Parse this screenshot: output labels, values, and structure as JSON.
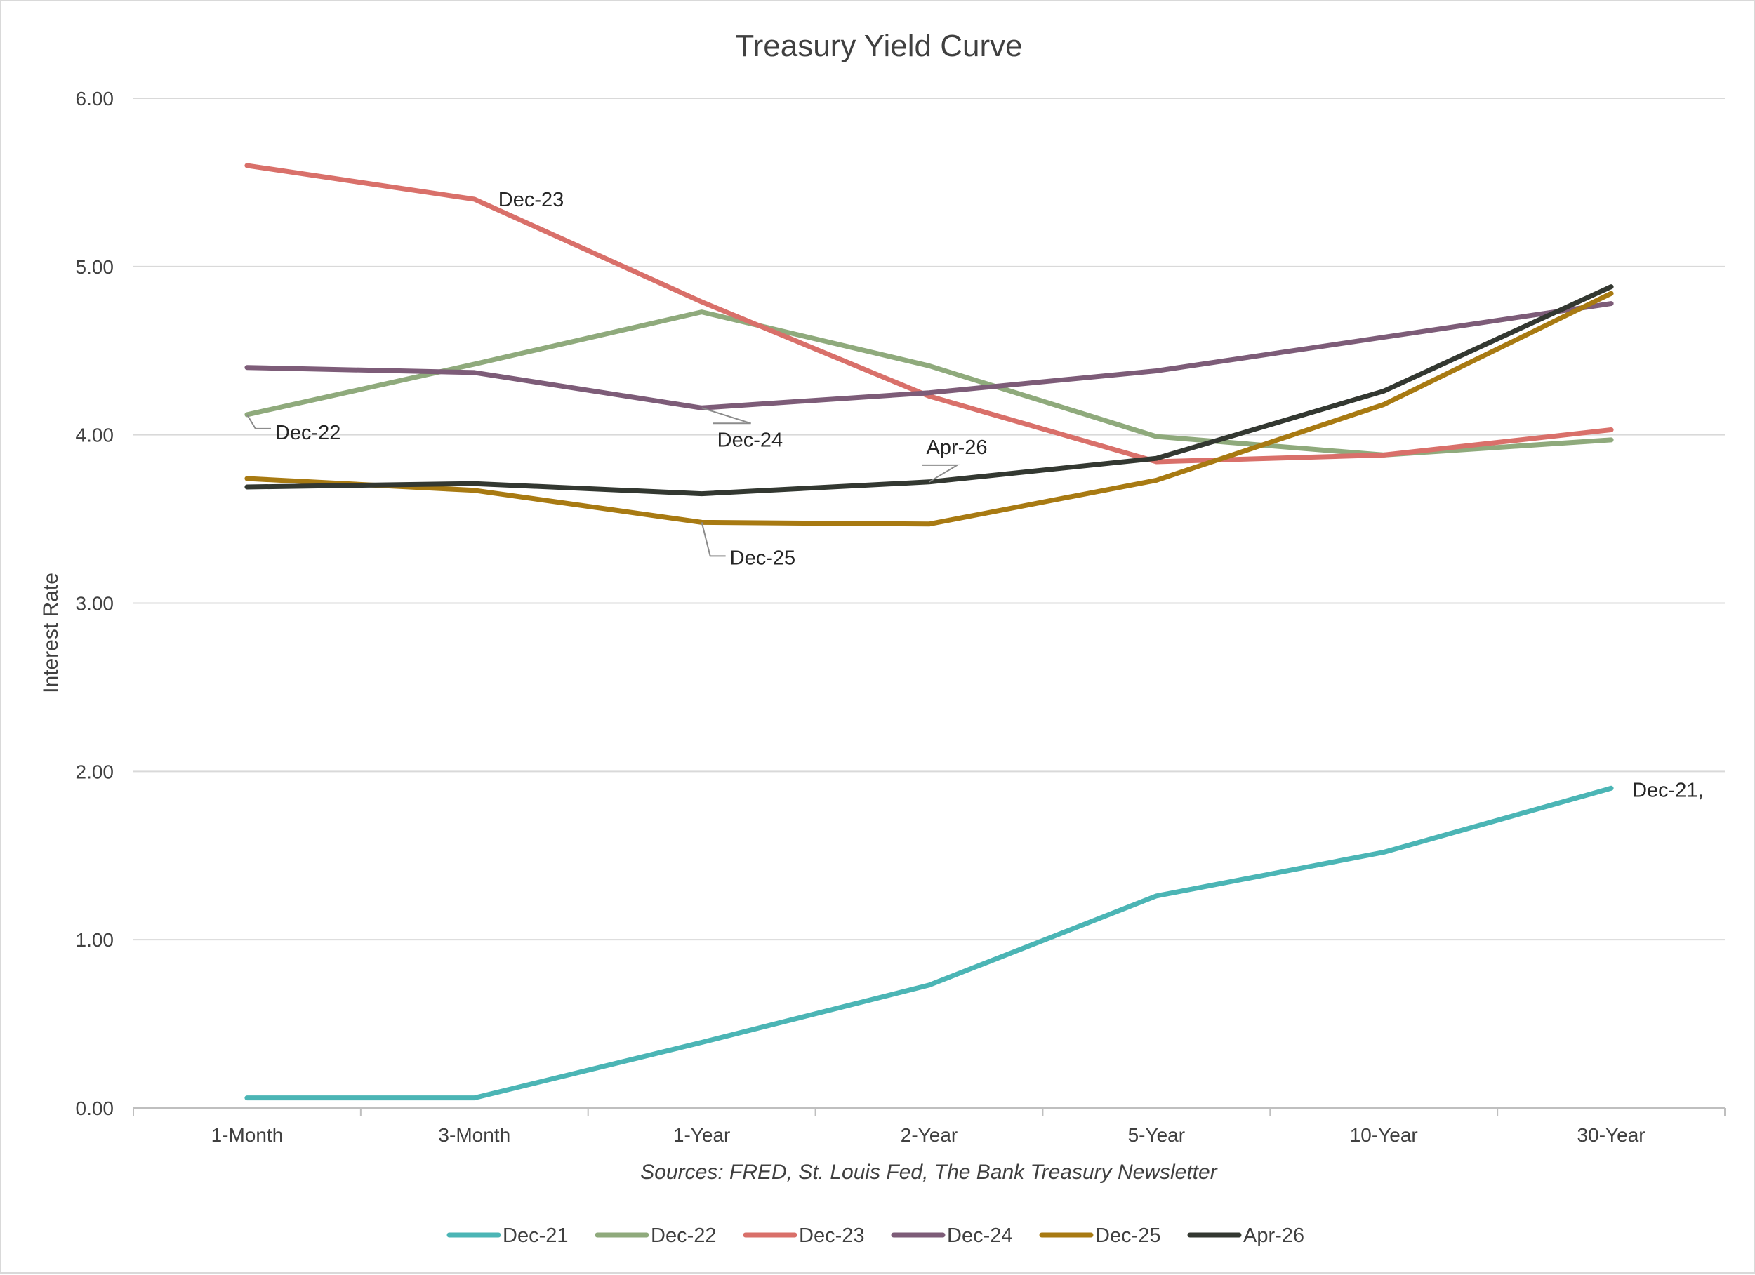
{
  "chart_data": {
    "type": "line",
    "title": "Treasury Yield Curve",
    "xlabel": "",
    "ylabel": "Interest Rate",
    "source_note": "Sources: FRED, St. Louis Fed, The Bank Treasury Newsletter",
    "categories": [
      "1-Month",
      "3-Month",
      "1-Year",
      "2-Year",
      "5-Year",
      "10-Year",
      "30-Year"
    ],
    "ylim": [
      0,
      6
    ],
    "yticks": [
      "0.00",
      "1.00",
      "2.00",
      "3.00",
      "4.00",
      "5.00",
      "6.00"
    ],
    "grid": true,
    "legend_position": "bottom",
    "series": [
      {
        "name": "Dec-21",
        "color": "#4bb5b5",
        "values": [
          0.06,
          0.06,
          0.39,
          0.73,
          1.26,
          1.52,
          1.9
        ],
        "annotation": {
          "text": "Dec-21,",
          "point": 6
        }
      },
      {
        "name": "Dec-22",
        "color": "#8faa7c",
        "values": [
          4.12,
          4.42,
          4.73,
          4.41,
          3.99,
          3.88,
          3.97
        ],
        "annotation": {
          "text": "Dec-22",
          "point": 0
        }
      },
      {
        "name": "Dec-23",
        "color": "#d9706a",
        "values": [
          5.6,
          5.4,
          4.79,
          4.23,
          3.84,
          3.88,
          4.03
        ],
        "annotation": {
          "text": "Dec-23",
          "point": 1
        }
      },
      {
        "name": "Dec-24",
        "color": "#7d5c78",
        "values": [
          4.4,
          4.37,
          4.16,
          4.25,
          4.38,
          4.58,
          4.78
        ],
        "annotation": {
          "text": "Dec-24",
          "point": 2
        }
      },
      {
        "name": "Dec-25",
        "color": "#a87a12",
        "values": [
          3.74,
          3.67,
          3.48,
          3.47,
          3.73,
          4.18,
          4.84
        ],
        "annotation": {
          "text": "Dec-25",
          "point": 2
        }
      },
      {
        "name": "Apr-26",
        "color": "#333831",
        "values": [
          3.69,
          3.71,
          3.65,
          3.72,
          3.86,
          4.26,
          4.88
        ],
        "annotation": {
          "text": "Apr-26",
          "point": 3
        }
      }
    ]
  }
}
